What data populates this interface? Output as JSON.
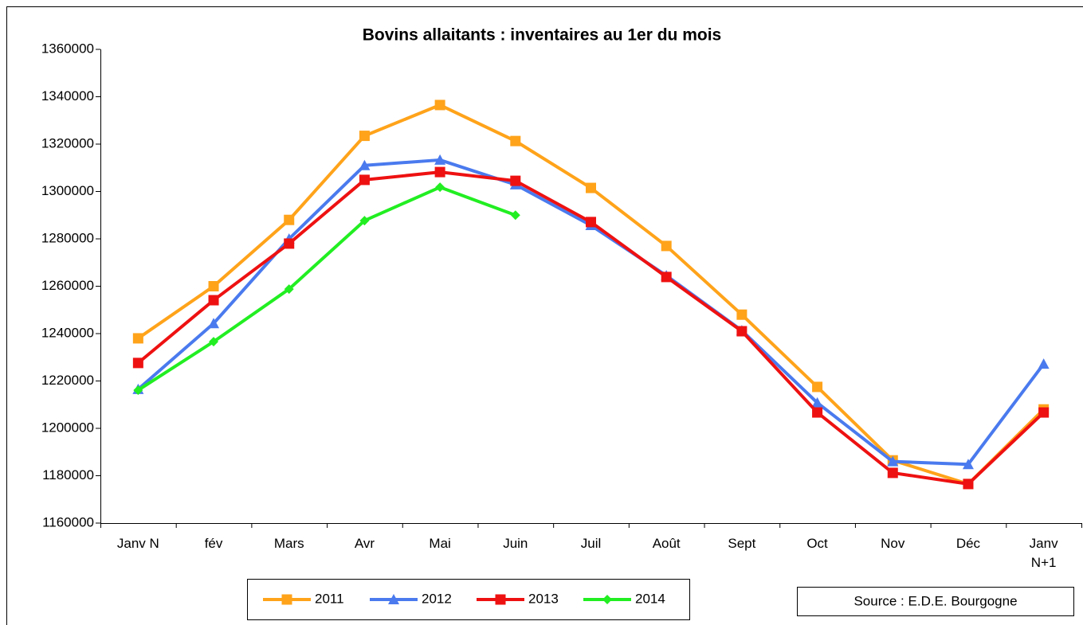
{
  "chart_data": {
    "type": "line",
    "title": "Bovins allaitants : inventaires au 1er du mois",
    "source": "Source : E.D.E. Bourgogne",
    "categories": [
      "Janv N",
      "fév",
      "Mars",
      "Avr",
      "Mai",
      "Juin",
      "Juil",
      "Août",
      "Sept",
      "Oct",
      "Nov",
      "Déc",
      "Janv N+1"
    ],
    "series": [
      {
        "name": "2011",
        "color": "#ffa31a",
        "marker": "square",
        "values": [
          1238000,
          1260000,
          1288000,
          1323500,
          1336500,
          1321300,
          1301500,
          1277000,
          1248000,
          1217500,
          1186500,
          1176500,
          1208000
        ]
      },
      {
        "name": "2012",
        "color": "#4a7aee",
        "marker": "triangle",
        "values": [
          1216500,
          1244300,
          1280000,
          1311000,
          1313300,
          1302900,
          1285700,
          1264500,
          1241300,
          1210800,
          1186000,
          1184800,
          1227200
        ]
      },
      {
        "name": "2013",
        "color": "#ee1111",
        "marker": "square",
        "values": [
          1227600,
          1254100,
          1278000,
          1304900,
          1308200,
          1304500,
          1287100,
          1263900,
          1241000,
          1206700,
          1181200,
          1176500,
          1206700
        ]
      },
      {
        "name": "2014",
        "color": "#22ee22",
        "marker": "diamond",
        "values": [
          1216100,
          1236600,
          1258800,
          1287700,
          1301800,
          1290000,
          null,
          null,
          null,
          null,
          null,
          null,
          null
        ]
      }
    ],
    "ylim": [
      1160000,
      1360000
    ],
    "yticks": [
      1160000,
      1180000,
      1200000,
      1220000,
      1240000,
      1260000,
      1280000,
      1300000,
      1320000,
      1340000,
      1360000
    ],
    "legend": "bottom"
  }
}
